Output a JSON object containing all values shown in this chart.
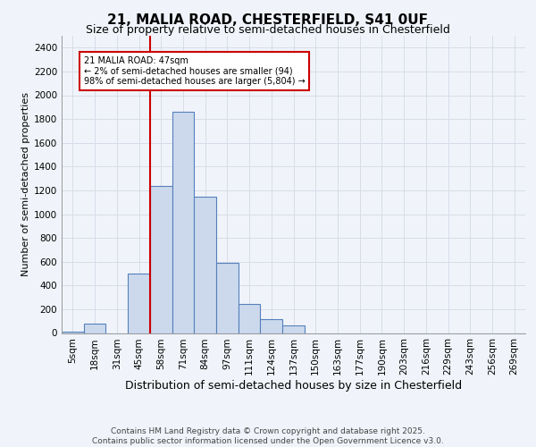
{
  "title_line1": "21, MALIA ROAD, CHESTERFIELD, S41 0UF",
  "title_line2": "Size of property relative to semi-detached houses in Chesterfield",
  "xlabel": "Distribution of semi-detached houses by size in Chesterfield",
  "ylabel": "Number of semi-detached properties",
  "footer_line1": "Contains HM Land Registry data © Crown copyright and database right 2025.",
  "footer_line2": "Contains public sector information licensed under the Open Government Licence v3.0.",
  "bin_labels": [
    "5sqm",
    "18sqm",
    "31sqm",
    "45sqm",
    "58sqm",
    "71sqm",
    "84sqm",
    "97sqm",
    "111sqm",
    "124sqm",
    "137sqm",
    "150sqm",
    "163sqm",
    "177sqm",
    "190sqm",
    "203sqm",
    "216sqm",
    "229sqm",
    "243sqm",
    "256sqm",
    "269sqm"
  ],
  "bar_values": [
    15,
    80,
    0,
    500,
    1240,
    1860,
    1150,
    590,
    245,
    120,
    65,
    0,
    0,
    0,
    0,
    0,
    0,
    0,
    0,
    0,
    0
  ],
  "bar_color": "#ccd9ed",
  "bar_edge_color": "#5580bb",
  "vline_color": "#cc0000",
  "vline_x_idx": 3,
  "annotation_text": "21 MALIA ROAD: 47sqm\n← 2% of semi-detached houses are smaller (94)\n98% of semi-detached houses are larger (5,804) →",
  "ylim": [
    0,
    2500
  ],
  "yticks": [
    0,
    200,
    400,
    600,
    800,
    1000,
    1200,
    1400,
    1600,
    1800,
    2000,
    2200,
    2400
  ],
  "bg_color": "#f0f4fa",
  "grid_color": "#d8dce8",
  "title_fontsize": 11,
  "subtitle_fontsize": 9,
  "ylabel_fontsize": 8,
  "xlabel_fontsize": 9,
  "tick_fontsize": 7.5,
  "footer_fontsize": 6.5
}
